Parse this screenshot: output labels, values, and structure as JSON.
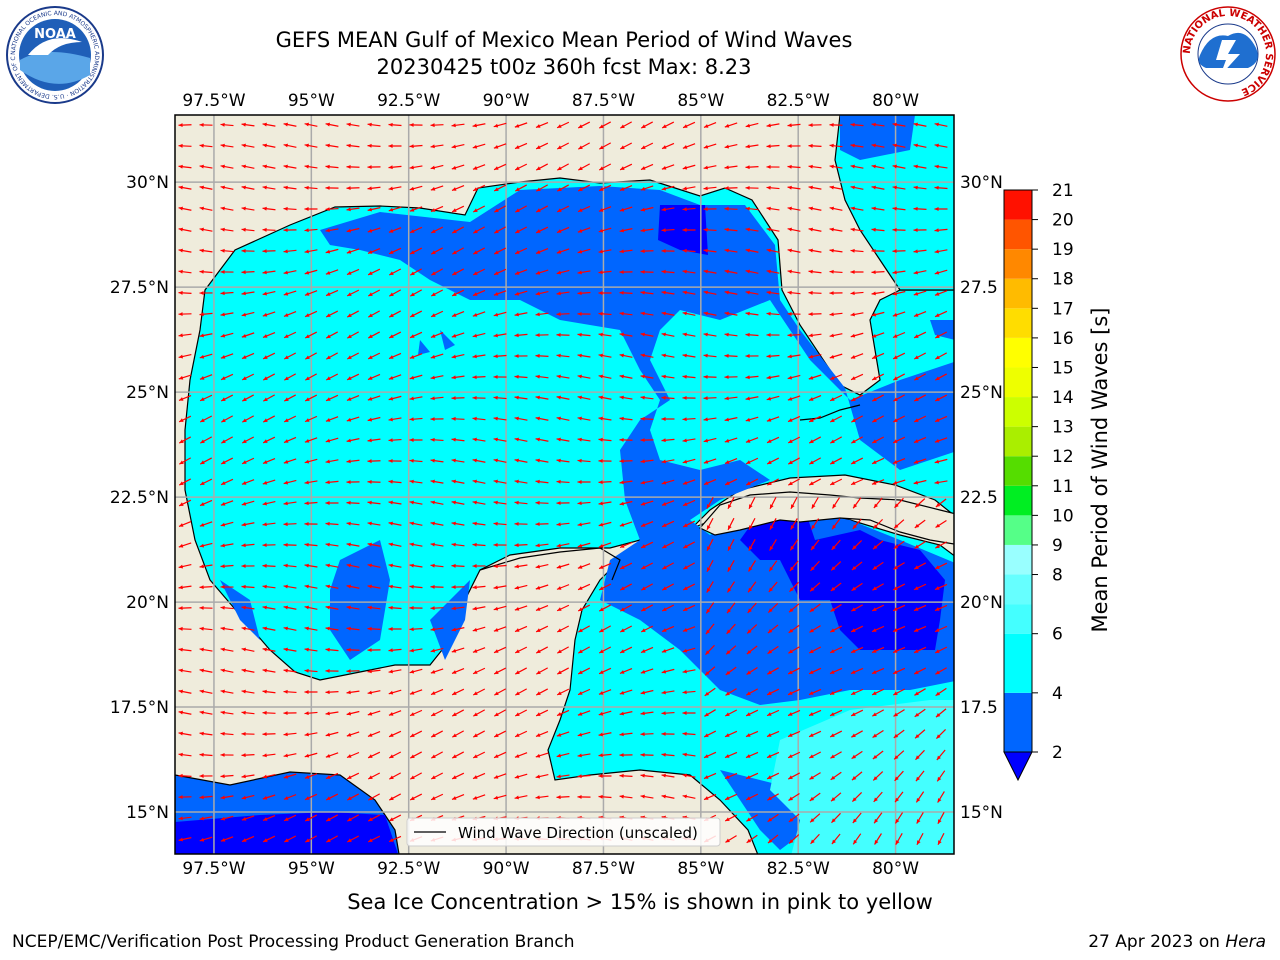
{
  "title": {
    "line1": "GEFS MEAN Gulf of Mexico Mean Period of Wind Waves",
    "line2": "20230425 t00z 360h fcst   Max: 8.23"
  },
  "map": {
    "lon_range": [
      -98.5,
      -78.5
    ],
    "lat_range": [
      14.0,
      31.6
    ],
    "lon_ticks": [
      {
        "value": -97.5,
        "label": "97.5°W"
      },
      {
        "value": -95.0,
        "label": "95°W"
      },
      {
        "value": -92.5,
        "label": "92.5°W"
      },
      {
        "value": -90.0,
        "label": "90°W"
      },
      {
        "value": -87.5,
        "label": "87.5°W"
      },
      {
        "value": -85.0,
        "label": "85°W"
      },
      {
        "value": -82.5,
        "label": "82.5°W"
      },
      {
        "value": -80.0,
        "label": "80°W"
      }
    ],
    "lat_ticks": [
      {
        "value": 30.0,
        "left": "30°N",
        "right": "30°N"
      },
      {
        "value": 27.5,
        "left": "27.5°N",
        "right": "27.5"
      },
      {
        "value": 25.0,
        "left": "25°N",
        "right": "25°N"
      },
      {
        "value": 22.5,
        "left": "22.5°N",
        "right": "22.5"
      },
      {
        "value": 20.0,
        "left": "20°N",
        "right": "20°N"
      },
      {
        "value": 17.5,
        "left": "17.5°N",
        "right": "17.5"
      },
      {
        "value": 15.0,
        "left": "15°N",
        "right": "15°N"
      }
    ],
    "grid": true,
    "land_color": "#efecdc",
    "coast_color": "#000000",
    "arrow_color": "#ff0000",
    "legend": {
      "label": "Wind Wave Direction (unscaled)",
      "placement": "lower-center"
    }
  },
  "colorbar": {
    "label": "Mean Period of Wind Waves [s]",
    "levels": [
      2,
      4,
      6,
      7,
      8,
      9,
      10,
      11,
      12,
      13,
      14,
      15,
      16,
      17,
      18,
      19,
      20,
      21
    ],
    "tick_labels": [
      "2",
      "4",
      "6",
      "8",
      "9",
      "10",
      "11",
      "12",
      "13",
      "14",
      "15",
      "16",
      "17",
      "18",
      "19",
      "20",
      "21"
    ],
    "tick_values": [
      2,
      4,
      6,
      8,
      9,
      10,
      11,
      12,
      13,
      14,
      15,
      16,
      17,
      18,
      19,
      20,
      21
    ],
    "colors": [
      "#0066ff",
      "#00ffff",
      "#44ffff",
      "#66ffff",
      "#99ffff",
      "#55ff88",
      "#00ee22",
      "#55dd00",
      "#aaee00",
      "#ccff00",
      "#eeff00",
      "#ffff00",
      "#ffdd00",
      "#ffbb00",
      "#ff8800",
      "#ff5500",
      "#ff1100"
    ],
    "under_color": "#0000ff"
  },
  "footer": {
    "ice_note": "Sea Ice Concentration > 15% is shown in pink to yellow",
    "credit": "NCEP/EMC/Verification Post Processing Product Generation Branch",
    "date_prefix": "27 Apr 2023 on ",
    "date_machine": "Hera"
  },
  "logos": {
    "noaa_text": "NOAA",
    "noaa_ring": "NATIONAL OCEANIC AND ATMOSPHERIC ADMINISTRATION · U.S. DEPARTMENT OF COMMERCE",
    "nws_ring": "NATIONAL WEATHER SERVICE"
  }
}
